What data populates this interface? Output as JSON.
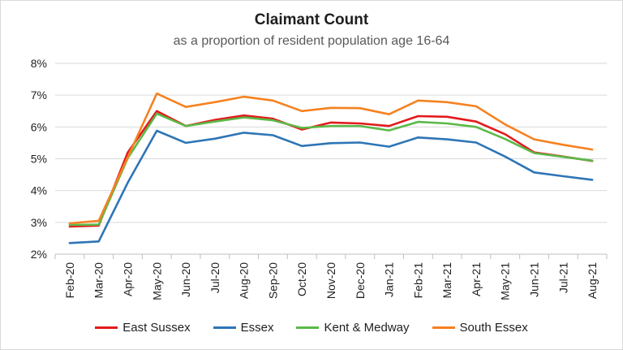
{
  "chart_data": {
    "type": "line",
    "title": "Claimant Count",
    "subtitle": "as a proportion of resident population age 16-64",
    "xlabel": "",
    "ylabel": "",
    "ylim": [
      2,
      8
    ],
    "yticks": [
      "2%",
      "3%",
      "4%",
      "5%",
      "6%",
      "7%",
      "8%"
    ],
    "grid": true,
    "legend_position": "bottom",
    "categories": [
      "Feb-20",
      "Mar-20",
      "Apr-20",
      "May-20",
      "Jun-20",
      "Jul-20",
      "Aug-20",
      "Sep-20",
      "Oct-20",
      "Nov-20",
      "Dec-20",
      "Jan-21",
      "Feb-21",
      "Mar-21",
      "Apr-21",
      "May-21",
      "Jun-21",
      "Jul-21",
      "Aug-21"
    ],
    "series": [
      {
        "name": "East Sussex",
        "color": "#e31a1c",
        "values": [
          2.87,
          2.9,
          5.2,
          6.5,
          6.03,
          6.22,
          6.36,
          6.26,
          5.92,
          6.14,
          6.11,
          6.03,
          6.34,
          6.32,
          6.17,
          5.77,
          5.2,
          5.07,
          4.93
        ]
      },
      {
        "name": "Essex",
        "color": "#2e75b6",
        "values": [
          2.35,
          2.4,
          4.25,
          5.88,
          5.5,
          5.63,
          5.82,
          5.74,
          5.4,
          5.49,
          5.51,
          5.38,
          5.67,
          5.61,
          5.51,
          5.07,
          4.57,
          4.45,
          4.34
        ]
      },
      {
        "name": "Kent & Medway",
        "color": "#5bb948",
        "values": [
          2.92,
          2.93,
          5.02,
          6.42,
          6.03,
          6.17,
          6.3,
          6.21,
          5.97,
          6.03,
          6.03,
          5.89,
          6.16,
          6.11,
          6.0,
          5.62,
          5.18,
          5.06,
          4.94
        ]
      },
      {
        "name": "South Essex",
        "color": "#f58220",
        "values": [
          2.97,
          3.05,
          5.05,
          7.05,
          6.63,
          6.78,
          6.95,
          6.83,
          6.5,
          6.6,
          6.59,
          6.4,
          6.83,
          6.78,
          6.65,
          6.08,
          5.61,
          5.44,
          5.29
        ]
      }
    ]
  }
}
